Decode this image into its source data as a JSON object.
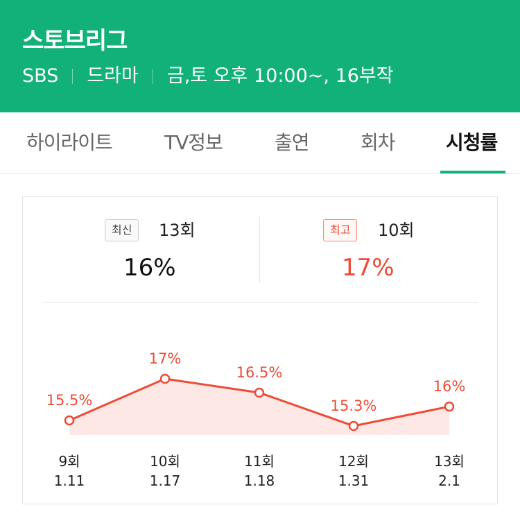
{
  "header": {
    "title": "스토브리그",
    "broadcaster": "SBS",
    "genre": "드라마",
    "schedule": "금,토 오후 10:00~, 16부작"
  },
  "tabs": [
    {
      "label": "하이라이트",
      "active": false
    },
    {
      "label": "TV정보",
      "active": false
    },
    {
      "label": "출연",
      "active": false
    },
    {
      "label": "회차",
      "active": false
    },
    {
      "label": "시청률",
      "active": true
    }
  ],
  "summary": {
    "latest": {
      "badge": "최신",
      "episode": "13회",
      "rating": "16%"
    },
    "best": {
      "badge": "최고",
      "episode": "10회",
      "rating": "17%"
    }
  },
  "colors": {
    "brand": "#11b179",
    "accent": "#ee4b37",
    "fill": "#fde8e5"
  },
  "chart_data": {
    "type": "line",
    "categories": [
      "9회",
      "10회",
      "11회",
      "12회",
      "13회"
    ],
    "dates": [
      "1.11",
      "1.17",
      "1.18",
      "1.31",
      "2.1"
    ],
    "values": [
      15.5,
      17,
      16.5,
      15.3,
      16
    ],
    "value_labels": [
      "15.5%",
      "17%",
      "16.5%",
      "15.3%",
      "16%"
    ],
    "area_fill": true,
    "grid": false,
    "legend": "none"
  }
}
